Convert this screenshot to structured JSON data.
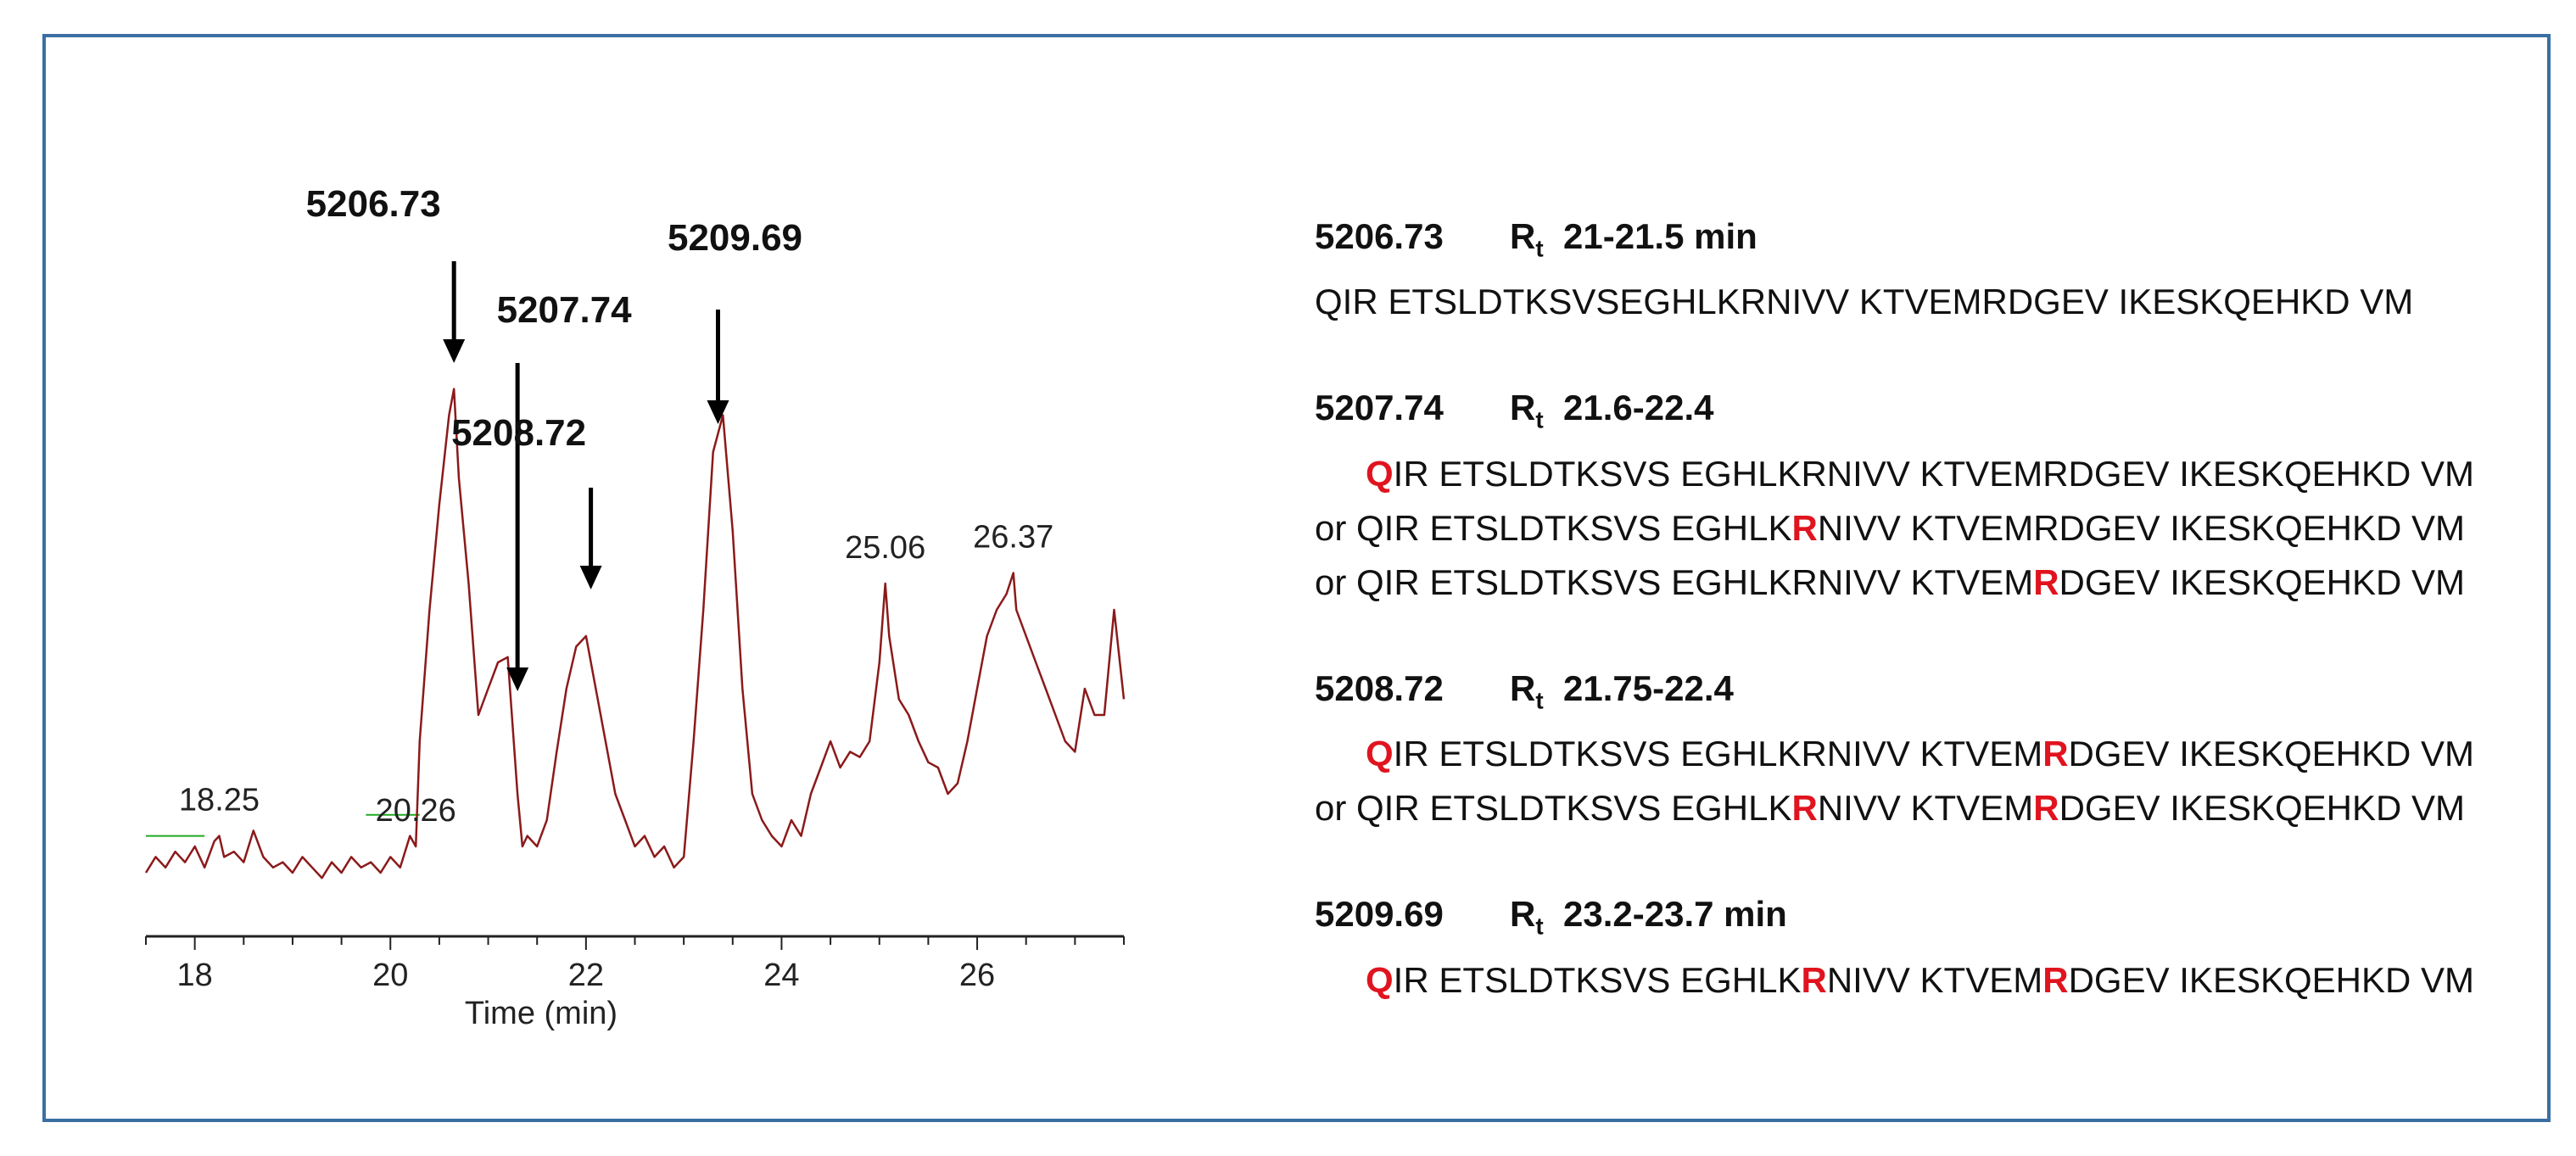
{
  "chart_data": {
    "type": "line",
    "xlabel": "Time (min)",
    "xlim": [
      17.5,
      27.5
    ],
    "ylim": [
      0,
      100
    ],
    "x_ticks": [
      "18",
      "20",
      "22",
      "24",
      "26"
    ],
    "line_color": "#8b1a1a",
    "baseline_color": "#22aa22",
    "series": [
      {
        "x": [
          17.5,
          17.6,
          17.7,
          17.8,
          17.9,
          18.0,
          18.1,
          18.2,
          18.25,
          18.3,
          18.4,
          18.5,
          18.6,
          18.7,
          18.8,
          18.9,
          19.0,
          19.1,
          19.2,
          19.3,
          19.4,
          19.5,
          19.6,
          19.7,
          19.8,
          19.9,
          20.0,
          20.1,
          20.2,
          20.26,
          20.3,
          20.4,
          20.5,
          20.6,
          20.65,
          20.7,
          20.8,
          20.9,
          21.0,
          21.1,
          21.2,
          21.3,
          21.35,
          21.4,
          21.5,
          21.6,
          21.7,
          21.8,
          21.9,
          22.0,
          22.1,
          22.2,
          22.3,
          22.4,
          22.5,
          22.6,
          22.7,
          22.8,
          22.9,
          23.0,
          23.1,
          23.2,
          23.3,
          23.4,
          23.5,
          23.6,
          23.7,
          23.8,
          23.9,
          24.0,
          24.1,
          24.2,
          24.3,
          24.4,
          24.5,
          24.6,
          24.7,
          24.8,
          24.9,
          25.0,
          25.06,
          25.1,
          25.2,
          25.3,
          25.4,
          25.5,
          25.6,
          25.7,
          25.8,
          25.9,
          26.0,
          26.1,
          26.2,
          26.3,
          26.37,
          26.4,
          26.5,
          26.6,
          26.7,
          26.8,
          26.9,
          27.0,
          27.1,
          27.2,
          27.3,
          27.4,
          27.5
        ],
        "y": [
          5,
          8,
          6,
          9,
          7,
          10,
          6,
          11,
          12,
          8,
          9,
          7,
          13,
          8,
          6,
          7,
          5,
          8,
          6,
          4,
          7,
          5,
          8,
          6,
          7,
          5,
          8,
          6,
          12,
          10,
          30,
          55,
          75,
          92,
          97,
          80,
          60,
          35,
          40,
          45,
          46,
          20,
          10,
          12,
          10,
          15,
          28,
          40,
          48,
          50,
          40,
          30,
          20,
          15,
          10,
          12,
          8,
          10,
          6,
          8,
          30,
          55,
          85,
          92,
          70,
          40,
          20,
          15,
          12,
          10,
          15,
          12,
          20,
          25,
          30,
          25,
          28,
          27,
          30,
          45,
          60,
          50,
          38,
          35,
          30,
          26,
          25,
          20,
          22,
          30,
          40,
          50,
          55,
          58,
          62,
          55,
          50,
          45,
          40,
          35,
          30,
          28,
          40,
          35,
          35,
          55,
          38
        ],
        "annotations": [
          {
            "x": 18.25,
            "label": "18.25"
          },
          {
            "x": 20.26,
            "label": "20.26"
          },
          {
            "x": 25.06,
            "label": "25.06"
          },
          {
            "x": 26.37,
            "label": "26.37"
          }
        ]
      }
    ],
    "arrows": [
      {
        "label": "5206.73",
        "x": 20.65
      },
      {
        "label": "5207.74",
        "x": 21.3
      },
      {
        "label": "5208.72",
        "x": 22.05
      },
      {
        "label": "5209.69",
        "x": 23.35
      }
    ]
  },
  "peptides": [
    {
      "mass": "5206.73",
      "rt_symbol": "R",
      "rt_sub": "t",
      "rt_range": "21-21.5 min",
      "lines": [
        {
          "prefix": "",
          "indent": false,
          "segments": [
            {
              "text": "QIR ETSLDTKSVSEGHLKRNIVV KTVEMRDGEV IKESKQEHKD VM",
              "hl": false
            }
          ]
        }
      ]
    },
    {
      "mass": "5207.74",
      "rt_symbol": "R",
      "rt_sub": "t",
      "rt_range": "21.6-22.4",
      "lines": [
        {
          "prefix": "",
          "indent": true,
          "segments": [
            {
              "text": "Q",
              "hl": true
            },
            {
              "text": "IR ETSLDTKSVS EGHLKRNIVV KTVEMRDGEV IKESKQEHKD VM",
              "hl": false
            }
          ]
        },
        {
          "prefix": "or ",
          "indent": false,
          "segments": [
            {
              "text": "QIR ETSLDTKSVS EGHLK",
              "hl": false
            },
            {
              "text": "R",
              "hl": true
            },
            {
              "text": "NIVV KTVEMRDGEV IKESKQEHKD VM",
              "hl": false
            }
          ]
        },
        {
          "prefix": "or ",
          "indent": false,
          "segments": [
            {
              "text": "QIR ETSLDTKSVS EGHLKRNIVV KTVEM",
              "hl": false
            },
            {
              "text": "R",
              "hl": true
            },
            {
              "text": "DGEV IKESKQEHKD VM",
              "hl": false
            }
          ]
        }
      ]
    },
    {
      "mass": "5208.72",
      "rt_symbol": "R",
      "rt_sub": "t",
      "rt_range": "21.75-22.4",
      "lines": [
        {
          "prefix": "",
          "indent": true,
          "segments": [
            {
              "text": "Q",
              "hl": true
            },
            {
              "text": "IR ETSLDTKSVS EGHLKRNIVV KTVEM",
              "hl": false
            },
            {
              "text": "R",
              "hl": true
            },
            {
              "text": "DGEV IKESKQEHKD VM",
              "hl": false
            }
          ]
        },
        {
          "prefix": "or ",
          "indent": false,
          "segments": [
            {
              "text": "QIR ETSLDTKSVS EGHLK",
              "hl": false
            },
            {
              "text": "R",
              "hl": true
            },
            {
              "text": "NIVV KTVEM",
              "hl": false
            },
            {
              "text": "R",
              "hl": true
            },
            {
              "text": "DGEV IKESKQEHKD VM",
              "hl": false
            }
          ]
        }
      ]
    },
    {
      "mass": "5209.69",
      "rt_symbol": "R",
      "rt_sub": "t",
      "rt_range": "23.2-23.7 min",
      "lines": [
        {
          "prefix": "",
          "indent": true,
          "segments": [
            {
              "text": "Q",
              "hl": true
            },
            {
              "text": "IR ETSLDTKSVS EGHLK",
              "hl": false
            },
            {
              "text": "R",
              "hl": true
            },
            {
              "text": "NIVV KTVEM",
              "hl": false
            },
            {
              "text": "R",
              "hl": true
            },
            {
              "text": "DGEV IKESKQEHKD VM",
              "hl": false
            }
          ]
        }
      ]
    }
  ]
}
